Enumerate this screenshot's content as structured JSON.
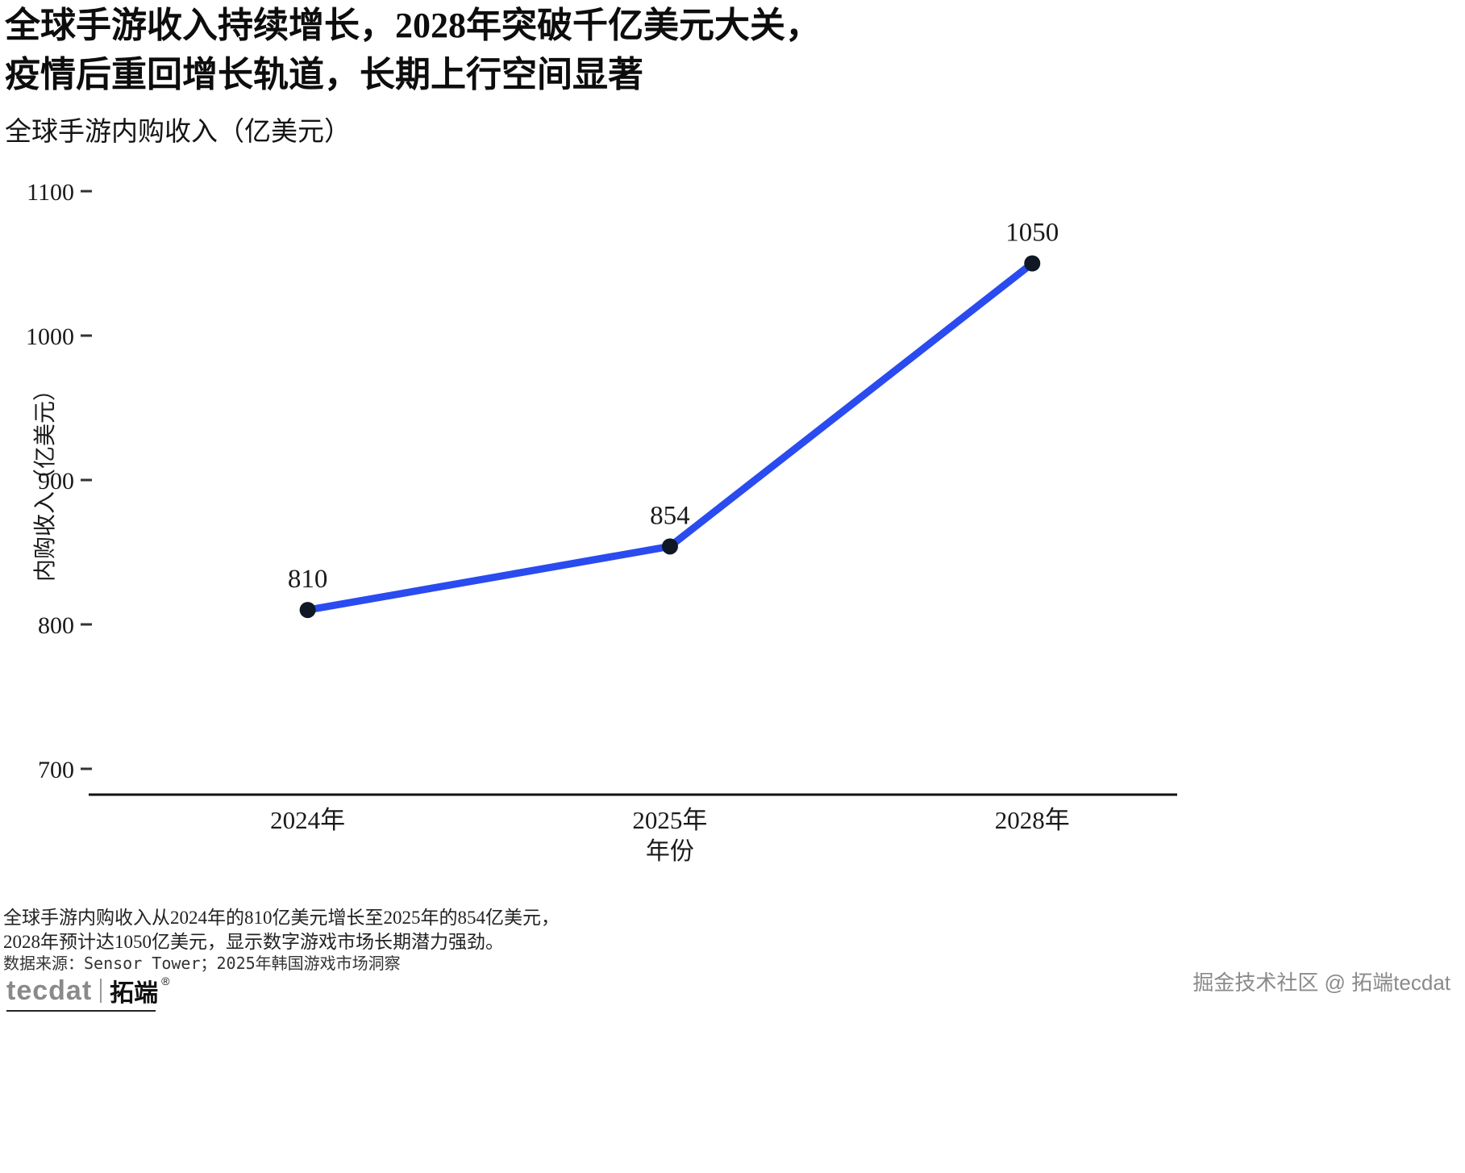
{
  "page": {
    "title_line1": "全球手游收入持续增长，2028年突破千亿美元大关，",
    "title_line2": "疫情后重回增长轨道，长期上行空间显著",
    "subtitle": "全球手游内购收入（亿美元）"
  },
  "chart_data": {
    "type": "line",
    "title": "全球手游内购收入（亿美元）",
    "categories": [
      "2024年",
      "2025年",
      "2028年"
    ],
    "values": [
      810,
      854,
      1050
    ],
    "data_labels": [
      "810",
      "854",
      "1050"
    ],
    "xlabel": "年份",
    "ylabel": "内购收入（亿美元）",
    "ylim": [
      700,
      1100
    ],
    "yticks": [
      700,
      800,
      900,
      1000,
      1100
    ],
    "grid": false,
    "legend": "none",
    "line_color": "#2a4bef",
    "point_color": "#101826",
    "axis_color": "#111111"
  },
  "footer": {
    "caption_line1": "全球手游内购收入从2024年的810亿美元增长至2025年的854亿美元，",
    "caption_line2": "2028年预计达1050亿美元，显示数字游戏市场长期潜力强劲。",
    "source": "数据来源：Sensor Tower；2025年韩国游戏市场洞察"
  },
  "branding": {
    "logo_text": "tecdat",
    "logo_cn": "拓端",
    "logo_reg": "®",
    "watermark": "掘金技术社区 @ 拓端tecdat"
  }
}
